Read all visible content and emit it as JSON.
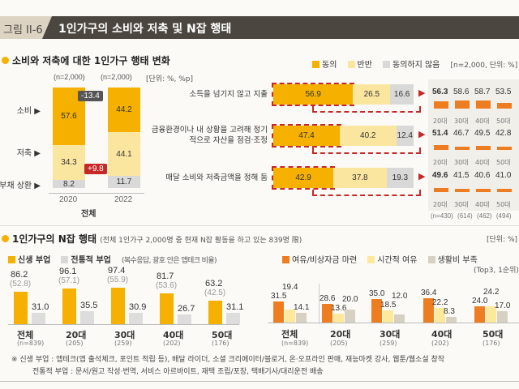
{
  "header": {
    "fig_label": "그림 II-6",
    "title": "1인가구의 소비와 저축 및 N잡 행태"
  },
  "section1": {
    "title": "소비와 저축에 대한 1인가구 행태 변화",
    "n_labels": [
      "(n=2,000)",
      "(n=2,000)"
    ],
    "unit": "[단위: %, %p]",
    "row_labels": [
      "소비 ▶",
      "저축 ▶",
      "부채 상환 ▶"
    ],
    "group_label": "전체",
    "change_consumption": "-13.4",
    "change_saving": "+9.8",
    "right_unit": "[n=2,000, 단위: %]",
    "age_n": [
      "(n=430)",
      "(614)",
      "(462)",
      "(494)"
    ]
  },
  "section2": {
    "title": "1인가구의 N잡 행태",
    "subtitle": "(전체 1인가구 2,000명 중 현재 N잡 활동을 하고 있는 839명 限)",
    "unit": "[단위: %]",
    "left_note": "(복수응답, 괄호 안은 앱테크 비율)",
    "right_note": "(Top3, 1순위)",
    "footnote1": "※ 신생 부업 : 앱테크(앱 출석체크, 포인트 적립 등), 배달 라이더, 소셜 크리에이터/블로거, 온·오프라인 판매, 재능마켓 강사, 웹툰/웹소설 창작",
    "footnote2": "전통적 부업 : 문서/원고 작성·번역, 서비스 아르바이트, 재택 조립/포장, 택배기사/대리운전 배송"
  },
  "colors": {
    "agree": "#f5b000",
    "half": "#fbe6a0",
    "disagree": "#d9d9d9",
    "reason1": "#ee7d22",
    "reason2": "#fde89c",
    "reason3": "#d6d1c2",
    "header": "#4b463f",
    "dashed": "#c62828"
  },
  "chart_data": [
    {
      "type": "bar",
      "stacked": true,
      "categories": [
        "2020",
        "2022"
      ],
      "series": [
        {
          "name": "소비",
          "values": [
            57.6,
            44.2
          ]
        },
        {
          "name": "저축",
          "values": [
            34.3,
            44.1
          ]
        },
        {
          "name": "부채 상환",
          "values": [
            8.2,
            11.7
          ]
        }
      ]
    },
    {
      "type": "bar",
      "orientation": "horizontal",
      "stacked": true,
      "categories": [
        "소득을 넘기지 않고 지출",
        "금융환경이나 내 상황을 고려해 정기적으로 자산을 점검·조정",
        "매달 소비와 저축금액을 정해 둠"
      ],
      "series": [
        {
          "name": "동의",
          "values": [
            56.9,
            47.4,
            42.9
          ]
        },
        {
          "name": "반반",
          "values": [
            26.5,
            40.2,
            37.8
          ]
        },
        {
          "name": "동의하지 않음",
          "values": [
            16.6,
            12.4,
            19.3
          ]
        }
      ]
    },
    {
      "type": "bar",
      "title": "동의 (연령별)",
      "categories": [
        "20대",
        "30대",
        "40대",
        "50대"
      ],
      "series": [
        {
          "values": [
            56.3,
            58.6,
            58.7,
            53.5
          ]
        },
        {
          "values": [
            51.4,
            46.7,
            49.5,
            42.8
          ]
        },
        {
          "values": [
            49.6,
            41.5,
            40.6,
            41.0
          ]
        }
      ]
    },
    {
      "type": "bar",
      "categories": [
        "전체",
        "20대",
        "30대",
        "40대",
        "50대"
      ],
      "category_n": [
        "(n=839)",
        "(205)",
        "(259)",
        "(202)",
        "(176)"
      ],
      "series": [
        {
          "name": "신생 부업",
          "values": [
            86.2,
            96.1,
            97.4,
            81.7,
            63.2
          ],
          "apptech": [
            "(52.8)",
            "(57.1)",
            "(55.9)",
            "(53.6)",
            "(42.5)"
          ]
        },
        {
          "name": "전통적 부업",
          "values": [
            31.0,
            35.5,
            30.9,
            26.7,
            31.1
          ]
        }
      ]
    },
    {
      "type": "bar",
      "categories": [
        "전체",
        "20대",
        "30대",
        "40대",
        "50대"
      ],
      "category_n": [
        "(n=839)",
        "(205)",
        "(259)",
        "(202)",
        "(176)"
      ],
      "series": [
        {
          "name": "여유/비상자금 마련",
          "values": [
            31.5,
            28.6,
            35.0,
            36.4,
            24.0
          ]
        },
        {
          "name": "시간적 여유",
          "values": [
            19.4,
            13.6,
            18.5,
            22.2,
            24.2
          ]
        },
        {
          "name": "생활비 부족",
          "values": [
            14.1,
            20.0,
            12.0,
            8.3,
            17.0
          ]
        }
      ]
    }
  ]
}
